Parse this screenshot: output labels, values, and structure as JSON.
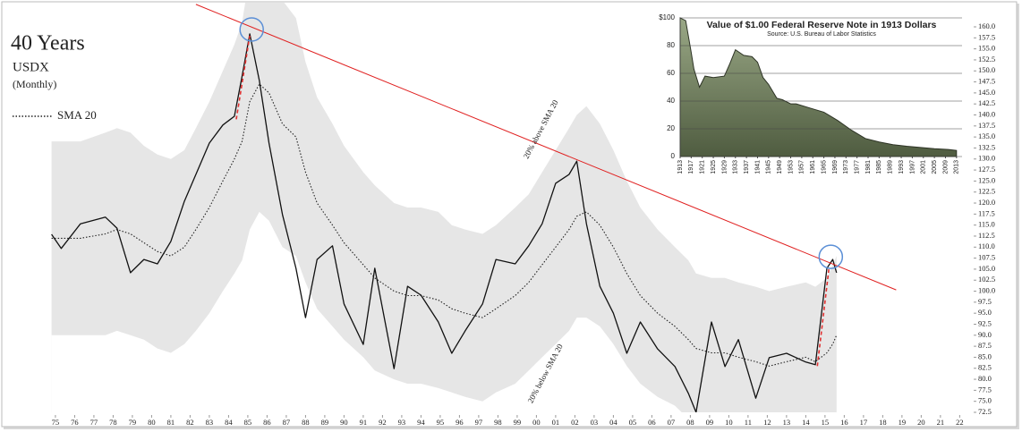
{
  "chart_data": [
    {
      "type": "line",
      "title": "40 Years",
      "subtitle": "USDX",
      "note": "(Monthly)",
      "x": [
        1974.8,
        1975.3,
        1976.3,
        1977.6,
        1978.2,
        1978.9,
        1979.6,
        1980.3,
        1981.0,
        1981.7,
        1982.3,
        1983.0,
        1983.7,
        1984.3,
        1984.7,
        1985.1,
        1985.6,
        1986.1,
        1986.8,
        1987.5,
        1988.0,
        1988.6,
        1989.4,
        1990.0,
        1991.0,
        1991.6,
        1992.6,
        1993.3,
        1994.0,
        1994.9,
        1995.6,
        1996.3,
        1997.2,
        1997.9,
        1998.9,
        1999.6,
        2000.3,
        2001.0,
        2001.7,
        2002.1,
        2002.6,
        2003.3,
        2004.0,
        2004.7,
        2005.4,
        2006.3,
        2007.2,
        2007.9,
        2008.3,
        2009.1,
        2009.8,
        2010.5,
        2011.4,
        2012.1,
        2013.0,
        2014.0,
        2014.5,
        2015.1,
        2015.4,
        2015.6
      ],
      "series": [
        {
          "color": "#111111",
          "values": [
            112.9,
            109.7,
            115.3,
            116.8,
            114.3,
            104.2,
            107.2,
            106.2,
            111.3,
            120.4,
            126.5,
            133.6,
            137.7,
            139.7,
            148.8,
            158.4,
            147.8,
            133.6,
            117.4,
            105.2,
            94.0,
            107.2,
            110.3,
            97.1,
            87.9,
            105.2,
            82.4,
            101.1,
            99.1,
            93.0,
            85.9,
            91.0,
            97.1,
            107.2,
            106.2,
            110.3,
            115.3,
            124.5,
            126.5,
            129.5,
            115.3,
            101.1,
            95.0,
            85.9,
            93.0,
            86.9,
            82.9,
            76.8,
            72.5,
            93.0,
            82.9,
            89.0,
            75.7,
            84.9,
            85.9,
            83.9,
            83.3,
            105.2,
            107.2,
            104.2
          ]
        },
        {
          "name": "SMA 20",
          "color": "#222222",
          "style": "dotted",
          "values": [
            112,
            112,
            112,
            113,
            114,
            113,
            111,
            109,
            108,
            110,
            114,
            119,
            125,
            130,
            134,
            143,
            147,
            145,
            138,
            135,
            127,
            120,
            115,
            111,
            106,
            103,
            100,
            99,
            99,
            98,
            96,
            95,
            94,
            96,
            99,
            102,
            106,
            110,
            114,
            117,
            118,
            115,
            110,
            104,
            99,
            95,
            92,
            89,
            87,
            86,
            86,
            85,
            84,
            83,
            84,
            85,
            84,
            86,
            88,
            90
          ]
        }
      ],
      "bands": {
        "color": "#e6e6e6",
        "upper": {
          "name": "20% above SMA 20",
          "values": [
            134,
            134,
            134,
            136,
            137,
            136,
            133,
            131,
            130,
            132,
            137,
            143,
            150,
            156,
            161,
            172,
            176,
            174,
            166,
            162,
            152,
            144,
            138,
            133,
            127,
            124,
            120,
            119,
            119,
            118,
            115,
            114,
            113,
            115,
            119,
            122,
            127,
            132,
            137,
            140,
            142,
            138,
            132,
            125,
            119,
            114,
            110,
            107,
            104,
            103,
            103,
            102,
            101,
            100,
            101,
            102,
            101,
            103,
            106,
            108
          ]
        },
        "lower": {
          "name": "20% below SMA 20",
          "values": [
            90,
            90,
            90,
            90,
            91,
            90,
            89,
            87,
            86,
            88,
            91,
            95,
            100,
            104,
            107,
            114,
            118,
            116,
            110,
            108,
            102,
            96,
            92,
            89,
            85,
            82,
            80,
            79,
            79,
            78,
            77,
            76,
            75,
            77,
            79,
            82,
            85,
            88,
            91,
            94,
            94,
            92,
            88,
            83,
            79,
            76,
            74,
            71,
            70,
            69,
            69,
            68,
            67,
            66,
            67,
            68,
            67,
            69,
            70,
            72
          ]
        }
      },
      "trend_line": {
        "color": "#e02020",
        "x": [
          1982.3,
          2018.7
        ],
        "values": [
          165.1,
          100.3
        ]
      },
      "dashed_lines": {
        "color": "#e03030",
        "lines": [
          {
            "x": [
              1984.4,
              1985.1
            ],
            "values": [
              139,
              158
            ]
          },
          {
            "x": [
              2014.6,
              2015.2
            ],
            "values": [
              83,
              105
            ]
          }
        ]
      },
      "highlights": {
        "color": "#5b8fd6",
        "x": [
          1985.2,
          2015.3
        ],
        "values": [
          159.4,
          107.8
        ]
      },
      "xlim": [
        1973.05,
        2022.82
      ],
      "xticks": [
        {
          "value": 1975,
          "label": "75"
        },
        {
          "value": 1976,
          "label": "76"
        },
        {
          "value": 1977,
          "label": "77"
        },
        {
          "value": 1978,
          "label": "78"
        },
        {
          "value": 1979,
          "label": "79"
        },
        {
          "value": 1980,
          "label": "80"
        },
        {
          "value": 1981,
          "label": "81"
        },
        {
          "value": 1982,
          "label": "82"
        },
        {
          "value": 1983,
          "label": "83"
        },
        {
          "value": 1984,
          "label": "84"
        },
        {
          "value": 1985,
          "label": "85"
        },
        {
          "value": 1986,
          "label": "86"
        },
        {
          "value": 1987,
          "label": "87"
        },
        {
          "value": 1988,
          "label": "88"
        },
        {
          "value": 1989,
          "label": "89"
        },
        {
          "value": 1990,
          "label": "90"
        },
        {
          "value": 1991,
          "label": "91"
        },
        {
          "value": 1992,
          "label": "92"
        },
        {
          "value": 1993,
          "label": "93"
        },
        {
          "value": 1994,
          "label": "94"
        },
        {
          "value": 1995,
          "label": "95"
        },
        {
          "value": 1996,
          "label": "96"
        },
        {
          "value": 1997,
          "label": "97"
        },
        {
          "value": 1998,
          "label": "98"
        },
        {
          "value": 1999,
          "label": "99"
        },
        {
          "value": 2000,
          "label": "00"
        },
        {
          "value": 2001,
          "label": "01"
        },
        {
          "value": 2002,
          "label": "02"
        },
        {
          "value": 2003,
          "label": "03"
        },
        {
          "value": 2004,
          "label": "04"
        },
        {
          "value": 2005,
          "label": "05"
        },
        {
          "value": 2006,
          "label": "06"
        },
        {
          "value": 2007,
          "label": "07"
        },
        {
          "value": 2008,
          "label": "08"
        },
        {
          "value": 2009,
          "label": "09"
        },
        {
          "value": 2010,
          "label": "10"
        },
        {
          "value": 2011,
          "label": "11"
        },
        {
          "value": 2012,
          "label": "12"
        },
        {
          "value": 2013,
          "label": "13"
        },
        {
          "value": 2014,
          "label": "14"
        },
        {
          "value": 2015,
          "label": "15"
        },
        {
          "value": 2016,
          "label": "16"
        },
        {
          "value": 2017,
          "label": "17"
        },
        {
          "value": 2018,
          "label": "18"
        },
        {
          "value": 2019,
          "label": "19"
        },
        {
          "value": 2020,
          "label": "20"
        },
        {
          "value": 2021,
          "label": "21"
        },
        {
          "value": 2022,
          "label": "22"
        }
      ],
      "ylim": [
        72.5,
        160
      ],
      "yticks": [
        72.5,
        {
          "value": 75,
          "label": "75.0"
        },
        77.5,
        {
          "value": 80,
          "label": "80.0"
        },
        82.5,
        {
          "value": 85,
          "label": "85.0"
        },
        87.5,
        {
          "value": 90,
          "label": "90.0"
        },
        92.5,
        {
          "value": 95,
          "label": "95.0"
        },
        97.5,
        {
          "value": 100,
          "label": "100.0"
        },
        102.5,
        {
          "value": 105,
          "label": "105.0"
        },
        107.5,
        {
          "value": 110,
          "label": "110.0"
        },
        112.5,
        {
          "value": 115,
          "label": "115.0"
        },
        117.5,
        {
          "value": 120,
          "label": "120.0"
        },
        122.5,
        {
          "value": 125,
          "label": "125.0"
        },
        127.5,
        {
          "value": 130,
          "label": "130.0"
        },
        132.5,
        {
          "value": 135,
          "label": "135.0"
        },
        137.5,
        {
          "value": 140,
          "label": "140.0"
        },
        142.5,
        {
          "value": 145,
          "label": "145.0"
        },
        147.5,
        {
          "value": 150,
          "label": "150.0"
        },
        152.5,
        {
          "value": 155,
          "label": "155.0"
        },
        157.5,
        {
          "value": 160,
          "label": "160.0"
        }
      ],
      "grid": false
    },
    {
      "type": "area",
      "title": "Value of $1.00 Federal Reserve Note in 1913 Dollars",
      "subtitle": "Source: U.S. Bureau of Labor Statistics",
      "x": [
        1913,
        1915,
        1917,
        1918,
        1920,
        1922,
        1925,
        1929,
        1931,
        1933,
        1936,
        1939,
        1941,
        1943,
        1945,
        1948,
        1950,
        1953,
        1955,
        1960,
        1965,
        1970,
        1975,
        1980,
        1985,
        1990,
        1995,
        2000,
        2005,
        2010,
        2013
      ],
      "values": [
        100,
        98,
        75,
        63,
        50,
        58,
        57,
        58,
        67,
        77,
        73,
        72,
        68,
        57,
        52,
        42,
        41,
        38,
        38,
        35,
        32,
        26,
        19,
        13,
        10.5,
        8.6,
        7.4,
        6.5,
        5.7,
        5.1,
        4.4
      ],
      "color": "#7f8f6c",
      "xlim": [
        1913,
        2015
      ],
      "xticks": [
        1913,
        1917,
        1921,
        1925,
        1929,
        1933,
        1937,
        1941,
        1945,
        1949,
        1953,
        1957,
        1961,
        1965,
        1969,
        1973,
        1977,
        1981,
        1985,
        1989,
        1993,
        1997,
        2001,
        2005,
        2009,
        2013
      ],
      "ylim": [
        0,
        100
      ],
      "yticks": [
        0,
        20,
        40,
        60,
        80,
        {
          "value": 100,
          "label": "$100"
        }
      ],
      "grid": true
    }
  ]
}
